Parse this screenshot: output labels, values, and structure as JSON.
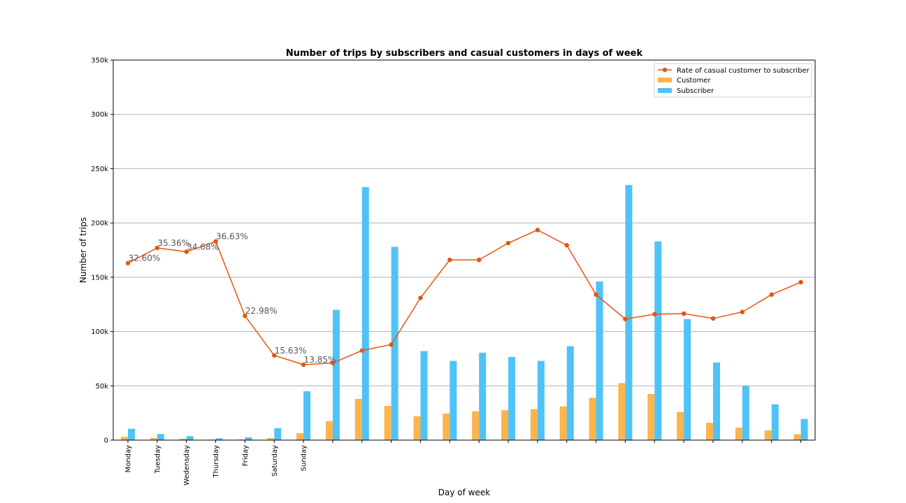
{
  "chart_data": {
    "type": "bar",
    "title": "Number of trips by subscribers and casual customers in days of week",
    "xlabel": "Day of week",
    "ylabel": "Number of trips",
    "ylim": [
      0,
      350000
    ],
    "yticks": [
      0,
      50000,
      100000,
      150000,
      200000,
      250000,
      300000,
      350000
    ],
    "ytick_labels": [
      "0",
      "50k",
      "100k",
      "150k",
      "200k",
      "250k",
      "300k",
      "350k"
    ],
    "grid": "horizontal",
    "legend_position": "top-right",
    "categories": [
      "Monday",
      "Tuesday",
      "Wedensday",
      "Thursday",
      "Friday",
      "Saturday",
      "Sunday",
      "",
      "",
      "",
      "",
      "",
      "",
      "",
      "",
      "",
      "",
      "",
      "",
      "",
      "",
      "",
      "",
      ""
    ],
    "series": [
      {
        "name": "Customer",
        "color": "#FDB44B",
        "values": [
          3000,
          2000,
          1300,
          500,
          600,
          2000,
          6400,
          17500,
          38000,
          31500,
          22000,
          24500,
          26500,
          27500,
          28500,
          31000,
          39000,
          52500,
          42500,
          26000,
          16000,
          11500,
          9000,
          5500
        ]
      },
      {
        "name": "Subscriber",
        "color": "#4FC3F7",
        "values": [
          10500,
          5700,
          3700,
          1700,
          2600,
          11000,
          45000,
          120000,
          233000,
          178000,
          82000,
          73000,
          80500,
          76500,
          73000,
          86500,
          146000,
          235000,
          183000,
          111500,
          71500,
          50000,
          33000,
          19500
        ]
      }
    ],
    "line_series": {
      "name": "Rate of casual customer to subscriber",
      "color": "#E6550D",
      "values": [
        163000,
        177000,
        173500,
        183000,
        114500,
        78000,
        69500,
        71000,
        82500,
        88000,
        131000,
        166000,
        166000,
        181500,
        193500,
        179500,
        134000,
        111500,
        116000,
        116500,
        112000,
        118000,
        134000,
        145500
      ]
    },
    "annotations": [
      {
        "index": 0,
        "text": "32.60%"
      },
      {
        "index": 1,
        "text": "35.36%"
      },
      {
        "index": 2,
        "text": "34.68%"
      },
      {
        "index": 3,
        "text": "36.63%"
      },
      {
        "index": 4,
        "text": "22.98%"
      },
      {
        "index": 5,
        "text": "15.63%"
      },
      {
        "index": 6,
        "text": "13.85%"
      }
    ]
  }
}
